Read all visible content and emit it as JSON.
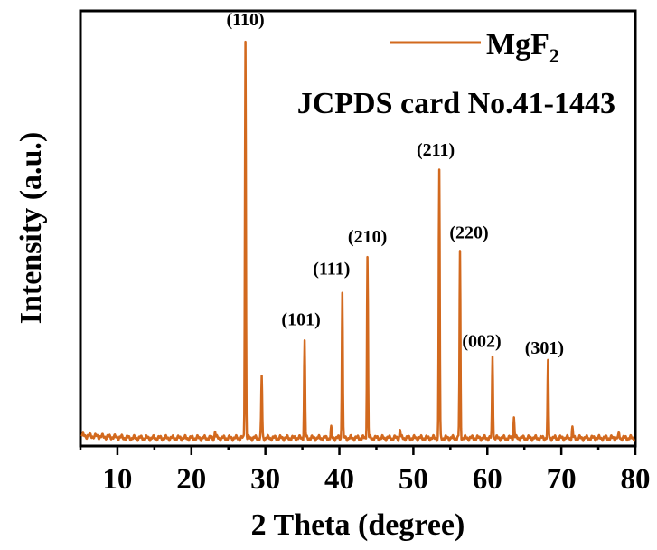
{
  "chart_data": {
    "type": "line",
    "title": "",
    "xlabel": "2 Theta (degree)",
    "ylabel": "Intensity (a.u.)",
    "xlim": [
      5,
      80
    ],
    "ylim": [
      0,
      100
    ],
    "x_ticks": [
      "10",
      "20",
      "30",
      "40",
      "50",
      "60",
      "70",
      "80"
    ],
    "y_ticks": [],
    "legend": {
      "position": "top-right",
      "entries": [
        {
          "name_main": "MgF",
          "name_sub": "2"
        }
      ]
    },
    "annotation": "JCPDS card No.41-1443",
    "grid": false,
    "series_color": "#D2691E",
    "baseline": 1.5,
    "peaks": [
      {
        "x": 23.2,
        "y": 3.2,
        "label": ""
      },
      {
        "x": 27.3,
        "y": 98.2,
        "label": "(110)"
      },
      {
        "x": 29.5,
        "y": 16.5,
        "label": ""
      },
      {
        "x": 35.3,
        "y": 24.9,
        "label": "(101)"
      },
      {
        "x": 38.9,
        "y": 3.8,
        "label": ""
      },
      {
        "x": 40.4,
        "y": 37.2,
        "label": "(111)"
      },
      {
        "x": 43.8,
        "y": 45.5,
        "label": "(210)"
      },
      {
        "x": 48.2,
        "y": 3.5,
        "label": ""
      },
      {
        "x": 53.5,
        "y": 66.6,
        "label": "(211)"
      },
      {
        "x": 56.3,
        "y": 46.5,
        "label": "(220)"
      },
      {
        "x": 60.7,
        "y": 21.4,
        "label": "(002)"
      },
      {
        "x": 63.6,
        "y": 6.5,
        "label": ""
      },
      {
        "x": 68.2,
        "y": 19.8,
        "label": "(301)"
      },
      {
        "x": 71.5,
        "y": 3.9,
        "label": ""
      },
      {
        "x": 77.8,
        "y": 2.5,
        "label": ""
      }
    ]
  }
}
